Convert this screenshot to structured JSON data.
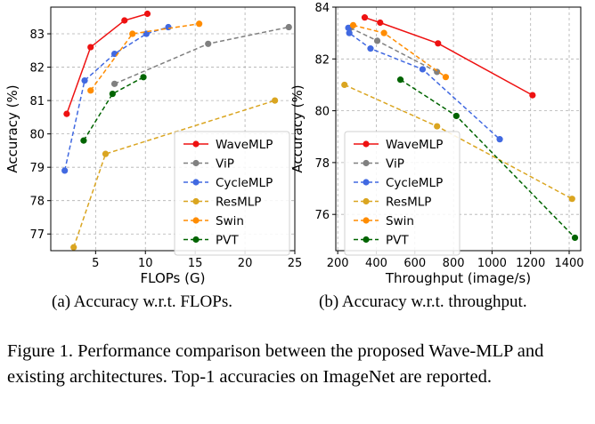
{
  "chart_data": [
    {
      "type": "line",
      "xlabel": "FLOPs (G)",
      "ylabel": "Accuracy (%)",
      "xlim": [
        0.5,
        25.0
      ],
      "ylim": [
        76.5,
        83.8
      ],
      "xticks": [
        5,
        10,
        15,
        20,
        25
      ],
      "yticks": [
        77,
        78,
        79,
        80,
        81,
        82,
        83
      ],
      "legend_position": "lower-right",
      "series": [
        {
          "name": "WaveMLP",
          "color": "#ee1111",
          "dash": "solid",
          "points": [
            [
              2.1,
              80.6
            ],
            [
              4.5,
              82.6
            ],
            [
              7.9,
              83.4
            ],
            [
              10.2,
              83.6
            ]
          ]
        },
        {
          "name": "ViP",
          "color": "#808080",
          "dash": "dashed",
          "points": [
            [
              6.9,
              81.5
            ],
            [
              16.3,
              82.7
            ],
            [
              24.4,
              83.2
            ]
          ]
        },
        {
          "name": "CycleMLP",
          "color": "#4169e1",
          "dash": "dashed",
          "points": [
            [
              1.9,
              78.9
            ],
            [
              3.9,
              81.6
            ],
            [
              6.9,
              82.4
            ],
            [
              10.1,
              83.0
            ],
            [
              12.3,
              83.2
            ]
          ]
        },
        {
          "name": "ResMLP",
          "color": "#daa520",
          "dash": "dashed",
          "points": [
            [
              2.8,
              76.6
            ],
            [
              6.0,
              79.4
            ],
            [
              23.0,
              81.0
            ]
          ]
        },
        {
          "name": "Swin",
          "color": "#ff8c00",
          "dash": "dashed",
          "points": [
            [
              4.5,
              81.3
            ],
            [
              8.7,
              83.0
            ],
            [
              15.4,
              83.3
            ]
          ]
        },
        {
          "name": "PVT",
          "color": "#006400",
          "dash": "dashed",
          "points": [
            [
              3.8,
              79.8
            ],
            [
              6.7,
              81.2
            ],
            [
              9.8,
              81.7
            ]
          ]
        }
      ]
    },
    {
      "type": "line",
      "xlabel": "Throughput (image/s)",
      "ylabel": "Accuracy (%)",
      "xlim": [
        190,
        1460
      ],
      "ylim": [
        74.6,
        84.0
      ],
      "xticks": [
        200,
        400,
        600,
        800,
        1000,
        1200,
        1400
      ],
      "yticks": [
        76,
        78,
        80,
        82,
        84
      ],
      "legend_position": "lower-left",
      "series": [
        {
          "name": "WaveMLP",
          "color": "#ee1111",
          "dash": "solid",
          "points": [
            [
              340,
              83.6
            ],
            [
              420,
              83.4
            ],
            [
              720,
              82.6
            ],
            [
              1210,
              80.6
            ]
          ]
        },
        {
          "name": "ViP",
          "color": "#808080",
          "dash": "dashed",
          "points": [
            [
              265,
              83.2
            ],
            [
              405,
              82.7
            ],
            [
              715,
              81.5
            ]
          ]
        },
        {
          "name": "CycleMLP",
          "color": "#4169e1",
          "dash": "dashed",
          "points": [
            [
              255,
              83.2
            ],
            [
              260,
              83.0
            ],
            [
              370,
              82.4
            ],
            [
              640,
              81.6
            ],
            [
              1040,
              78.9
            ]
          ]
        },
        {
          "name": "ResMLP",
          "color": "#daa520",
          "dash": "dashed",
          "points": [
            [
              235,
              81.0
            ],
            [
              715,
              79.4
            ],
            [
              1415,
              76.6
            ]
          ]
        },
        {
          "name": "Swin",
          "color": "#ff8c00",
          "dash": "dashed",
          "points": [
            [
              280,
              83.3
            ],
            [
              440,
              83.0
            ],
            [
              760,
              81.3
            ]
          ]
        },
        {
          "name": "PVT",
          "color": "#006400",
          "dash": "dashed",
          "points": [
            [
              525,
              81.2
            ],
            [
              815,
              79.8
            ],
            [
              1430,
              75.1
            ]
          ]
        }
      ]
    }
  ],
  "captions": {
    "sub_a": "(a) Accuracy w.r.t. FLOPs.",
    "sub_b": "(b) Accuracy w.r.t. throughput.",
    "figure": "Figure 1. Performance comparison between the proposed Wave-MLP and existing architectures. Top-1 accuracies on ImageNet are reported."
  }
}
